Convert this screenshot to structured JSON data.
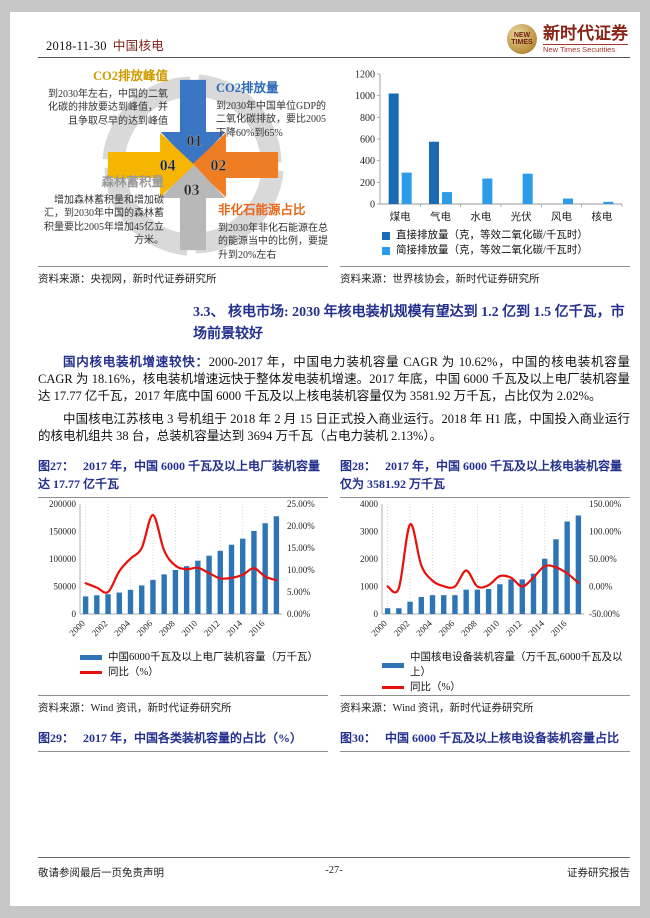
{
  "header": {
    "date": "2018-11-30",
    "stock": "中国核电",
    "brand": "新时代证券",
    "brand_en": "New Times Securities",
    "logo_line1": "NEW",
    "logo_line2": "TIMES"
  },
  "diagram": {
    "items": [
      {
        "num": "01",
        "title": "CO2排放量",
        "desc": "到2030年中国单位GDP的二氧化碳排放，要比2005下降60%到65%",
        "color": "#3a76c4"
      },
      {
        "num": "02",
        "title": "非化石能源占比",
        "desc": "到2030年非化石能源在总的能源当中的比例，要提升到20%左右",
        "color": "#ef7d23"
      },
      {
        "num": "03",
        "title": "森林蓄积量",
        "desc": "增加森林蓄积量和增加碳汇，到2030年中国的森林蓄积量要比2005年增加45亿立方米。",
        "color": "#b8b8b8"
      },
      {
        "num": "04",
        "title": "CO2排放峰值",
        "desc": "到2030年左右，中国的二氧化碳的排放要达到峰值，并且争取尽早的达到峰值",
        "color": "#f6b500"
      }
    ],
    "source": "资料来源：央视网，新时代证券研究所"
  },
  "section": {
    "number": "3.3、",
    "title": "核电市场: 2030 年核电装机规模有望达到 1.2 亿到 1.5 亿千瓦，市场前景较好",
    "para1_lead": "国内核电装机增速较快：",
    "para1": "2000-2017 年，中国电力装机容量 CAGR 为 10.62%，中国的核电装机容量 CAGR 为 18.16%，核电装机增速远快于整体发电装机增速。2017 年底，中国 6000 千瓦及以上电厂装机容量达 17.77 亿千瓦，2017 年底中国 6000 千瓦及以上核电装机容量仅为 3581.92 万千瓦，占比仅为 2.02%。",
    "para2": "中国核电江苏核电 3 号机组于 2018 年 2 月 15 日正式投入商业运行。2018 年 H1 底，中国投入商业运行的核电机组共 38 台，总装机容量达到 3694 万千瓦（占电力装机 2.13%）。"
  },
  "figures": {
    "emissions_source": "资料来源：世界核协会，新时代证券研究所",
    "fig27_label": "图27：",
    "fig27_title": "2017 年，中国 6000 千瓦及以上电厂装机容量达 17.77 亿千瓦",
    "fig28_label": "图28：",
    "fig28_title": "2017 年，中国 6000 千瓦及以上核电装机容量仅为 3581.92 万千瓦",
    "fig29_label": "图29：",
    "fig29_title": "2017 年，中国各类装机容量的占比（%）",
    "fig30_label": "图30：",
    "fig30_title": "中国 6000 千瓦及以上核电设备装机容量占比",
    "wind_source": "资料来源：Wind 资讯，新时代证券研究所"
  },
  "footer": {
    "left": "敬请参阅最后一页免责声明",
    "center": "-27-",
    "right": "证券研究报告"
  },
  "chart_data": [
    {
      "id": "emissions-by-source",
      "type": "bar",
      "categories": [
        "煤电",
        "气电",
        "水电",
        "光伏",
        "风电",
        "核电"
      ],
      "series": [
        {
          "name": "直接排放量（克，等效二氧化碳/千瓦时）",
          "color": "#1a6bb3",
          "values": [
            1020,
            575,
            0,
            0,
            0,
            0
          ]
        },
        {
          "name": "简接排放量（克，等效二氧化碳/千瓦时）",
          "color": "#2d9ce8",
          "values": [
            290,
            110,
            235,
            280,
            50,
            20
          ]
        }
      ],
      "ylim": [
        0,
        1200
      ],
      "yticks": [
        0,
        200,
        400,
        600,
        800,
        1000,
        1200
      ],
      "legend_position": "bottom",
      "grid": false
    },
    {
      "id": "fig27",
      "type": "bar+line",
      "title": "2017 年，中国 6000 千瓦及以上电厂装机容量达 17.77 亿千瓦",
      "categories": [
        "2000",
        "2001",
        "2002",
        "2003",
        "2004",
        "2005",
        "2006",
        "2007",
        "2008",
        "2009",
        "2010",
        "2011",
        "2012",
        "2013",
        "2014",
        "2015",
        "2016",
        "2017"
      ],
      "bar_series": {
        "name": "中国6000千瓦及以上电厂装机容量（万千瓦）",
        "color": "#2e75b6",
        "values": [
          32000,
          34000,
          36000,
          39000,
          44000,
          52000,
          62000,
          72000,
          80000,
          87000,
          97000,
          106000,
          115000,
          126000,
          137000,
          151000,
          165000,
          177700
        ]
      },
      "line_series": {
        "name": "同比（%）",
        "color": "#e8100c",
        "values": [
          7.0,
          6.0,
          5.0,
          9.7,
          12.6,
          15.0,
          22.5,
          14.4,
          11.0,
          10.2,
          10.5,
          9.3,
          8.1,
          8.2,
          8.9,
          10.4,
          8.5,
          7.7
        ]
      },
      "left_ylim": [
        0,
        200000
      ],
      "left_ticks": [
        0,
        50000,
        100000,
        150000,
        200000
      ],
      "right_ylim": [
        0,
        25
      ],
      "right_ticks": [
        "0.00%",
        "5.00%",
        "10.00%",
        "15.00%",
        "20.00%",
        "25.00%"
      ],
      "xlabel_every": 2,
      "grid": "vertical-dotted"
    },
    {
      "id": "fig28",
      "type": "bar+line",
      "title": "2017 年，中国 6000 千瓦及以上核电装机容量仅为 3581.92 万千瓦",
      "categories": [
        "2000",
        "2001",
        "2002",
        "2003",
        "2004",
        "2005",
        "2006",
        "2007",
        "2008",
        "2009",
        "2010",
        "2011",
        "2012",
        "2013",
        "2014",
        "2015",
        "2016",
        "2017"
      ],
      "bar_series": {
        "name": "中国核电设备装机容量（万千瓦,6000千瓦及以上）",
        "color": "#2e75b6",
        "values": [
          210,
          210,
          447,
          619,
          684,
          685,
          685,
          885,
          885,
          908,
          1082,
          1257,
          1257,
          1466,
          2008,
          2717,
          3364,
          3582
        ]
      },
      "line_series": {
        "name": "同比（%）",
        "color": "#e8100c",
        "values": [
          0,
          -3,
          113,
          38.5,
          10.5,
          0.5,
          0,
          29,
          0,
          2.6,
          19,
          16,
          0,
          16.6,
          37,
          35,
          23.8,
          6.5
        ]
      },
      "left_ylim": [
        0,
        4000
      ],
      "left_ticks": [
        0,
        1000,
        2000,
        3000,
        4000
      ],
      "right_ylim": [
        -50,
        150
      ],
      "right_ticks": [
        "-50.00%",
        "0.00%",
        "50.00%",
        "100.00%",
        "150.00%"
      ],
      "xlabel_every": 2,
      "grid": "vertical-dotted"
    }
  ]
}
